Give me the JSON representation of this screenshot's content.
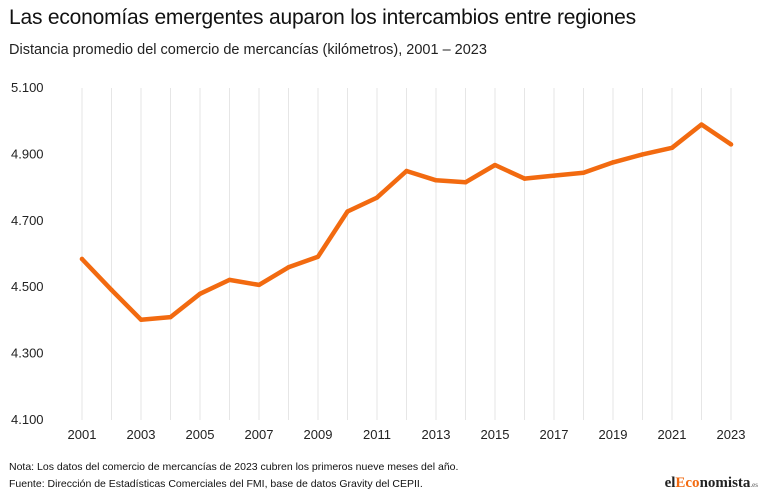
{
  "header": {
    "title": "Las economías emergentes auparon los intercambios entre regiones",
    "subtitle": "Distancia promedio del comercio de mercancías (kilómetros), 2001 – 2023"
  },
  "footer": {
    "note": "Nota: Los datos del comercio de mercancías de 2023 cubren los primeros nueve meses del año.",
    "source": "Fuente: Dirección de Estadísticas Comerciales del FMI, base de datos Gravity del CEPII."
  },
  "brand": {
    "prefix": "el",
    "accent": "Eco",
    "rest": "nomista",
    "suffix": ".es"
  },
  "chart_data": {
    "type": "line",
    "title": "Las economías emergentes auparon los intercambios entre regiones",
    "subtitle": "Distancia promedio del comercio de mercancías (kilómetros), 2001 – 2023",
    "xlabel": "",
    "ylabel": "",
    "x": [
      2001,
      2002,
      2003,
      2004,
      2005,
      2006,
      2007,
      2008,
      2009,
      2010,
      2011,
      2012,
      2013,
      2014,
      2015,
      2016,
      2017,
      2018,
      2019,
      2020,
      2021,
      2022,
      2023
    ],
    "series": [
      {
        "values": [
          4585,
          4492,
          4402,
          4410,
          4480,
          4522,
          4507,
          4560,
          4592,
          4728,
          4770,
          4850,
          4822,
          4816,
          4868,
          4827,
          4836,
          4845,
          4876,
          4900,
          4920,
          4990,
          4930
        ]
      }
    ],
    "xticks": [
      "2001",
      "2003",
      "2005",
      "2007",
      "2009",
      "2011",
      "2013",
      "2015",
      "2017",
      "2019",
      "2021",
      "2023"
    ],
    "yticks": [
      "4.100",
      "4.300",
      "4.500",
      "4.700",
      "4.900",
      "5.100"
    ],
    "ytick_values": [
      4100,
      4300,
      4500,
      4700,
      4900,
      5100
    ],
    "ylim": [
      4100,
      5100
    ],
    "xlim": [
      2001,
      2023
    ],
    "grid": "vertical",
    "legend": "none",
    "colors": {
      "line": "#f26a10",
      "grid": "#e6e6e6",
      "text": "#222222"
    }
  }
}
